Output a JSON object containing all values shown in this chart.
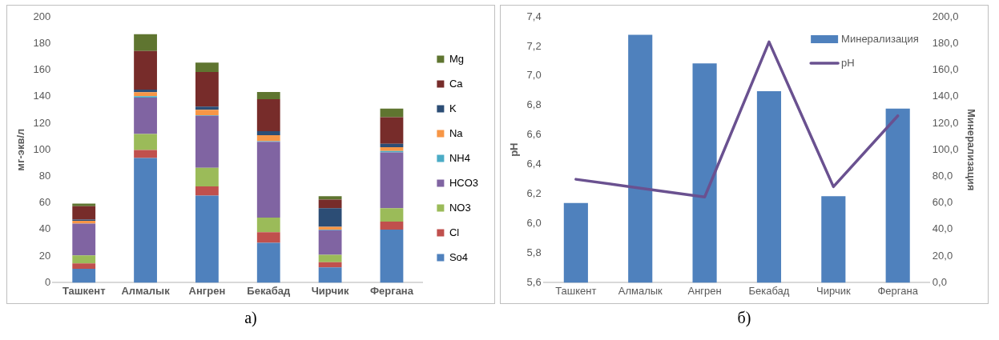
{
  "chart_data": [
    {
      "type": "bar",
      "stacked": true,
      "ylabel": "мг-экв/л",
      "categories": [
        "Ташкент",
        "Алмалык",
        "Ангрен",
        "Бекабад",
        "Чирчик",
        "Фергана"
      ],
      "ylim": [
        0,
        200
      ],
      "yticks": [
        0,
        20,
        40,
        60,
        80,
        100,
        120,
        140,
        160,
        180,
        200
      ],
      "legend": "right",
      "annotations": [
        "а)"
      ],
      "series": [
        {
          "name": "So4",
          "color": "#4f81bd",
          "values": [
            10.5,
            93.8,
            65.5,
            30,
            11.5,
            40
          ]
        },
        {
          "name": "Cl",
          "color": "#c0504d",
          "values": [
            4,
            6,
            7,
            8,
            4,
            6
          ]
        },
        {
          "name": "NO3",
          "color": "#9bbb59",
          "values": [
            6,
            12,
            14,
            11,
            5.5,
            10
          ]
        },
        {
          "name": "HCO3",
          "color": "#8064a2",
          "values": [
            24,
            27.5,
            39,
            57,
            18.5,
            42
          ]
        },
        {
          "name": "NH4",
          "color": "#4bacc6",
          "values": [
            null,
            1,
            0.5,
            0.5,
            0.5,
            1
          ]
        },
        {
          "name": "Na",
          "color": "#f79646",
          "values": [
            2,
            3,
            4,
            4.5,
            2,
            3
          ]
        },
        {
          "name": "K",
          "color": "#2c4d75",
          "values": [
            1,
            2,
            2.5,
            3,
            14,
            2.5
          ]
        },
        {
          "name": "Ca",
          "color": "#772c2a",
          "values": [
            10,
            29,
            26,
            24,
            6.5,
            20
          ]
        },
        {
          "name": "Mg",
          "color": "#5f7530",
          "values": [
            2,
            12.6,
            7,
            5.5,
            2.5,
            6.5
          ]
        }
      ]
    },
    {
      "type": "bar",
      "ylabel": "pH",
      "y2label": "Минерализация",
      "categories": [
        "Ташкент",
        "Алмалык",
        "Ангрен",
        "Бекабад",
        "Чирчик",
        "Фергана"
      ],
      "ylim": [
        5.6,
        7.4
      ],
      "yticks": [
        {
          "value": 5.6,
          "label": "5,6"
        },
        {
          "value": 5.8,
          "label": "5,8"
        },
        {
          "value": 6.0,
          "label": "6,0"
        },
        {
          "value": 6.2,
          "label": "6,2"
        },
        {
          "value": 6.4,
          "label": "6,4"
        },
        {
          "value": 6.6,
          "label": "6,6"
        },
        {
          "value": 6.8,
          "label": "6,8"
        },
        {
          "value": 7.0,
          "label": "7,0"
        },
        {
          "value": 7.2,
          "label": "7,2"
        },
        {
          "value": 7.4,
          "label": "7,4"
        }
      ],
      "y2lim": [
        0,
        200
      ],
      "y2ticks": [
        {
          "value": 0,
          "label": "0,0"
        },
        {
          "value": 20,
          "label": "20,0"
        },
        {
          "value": 40,
          "label": "40,0"
        },
        {
          "value": 60,
          "label": "60,0"
        },
        {
          "value": 80,
          "label": "80,0"
        },
        {
          "value": 100,
          "label": "100,0"
        },
        {
          "value": 120,
          "label": "120,0"
        },
        {
          "value": 140,
          "label": "140,0"
        },
        {
          "value": 160,
          "label": "160,0"
        },
        {
          "value": 180,
          "label": "180,0"
        },
        {
          "value": 200,
          "label": "200,0"
        }
      ],
      "legend": "top right",
      "annotations": [
        "б)"
      ],
      "series": [
        {
          "name": "Минерализация",
          "type": "bar",
          "axis": "y2",
          "color": "#4f81bd",
          "values": [
            60,
            186.5,
            165,
            144,
            65,
            131
          ]
        },
        {
          "name": "pH",
          "type": "line",
          "color": "#6a5190",
          "values": [
            6.3,
            6.24,
            6.18,
            7.23,
            6.25,
            6.73
          ]
        }
      ]
    }
  ]
}
